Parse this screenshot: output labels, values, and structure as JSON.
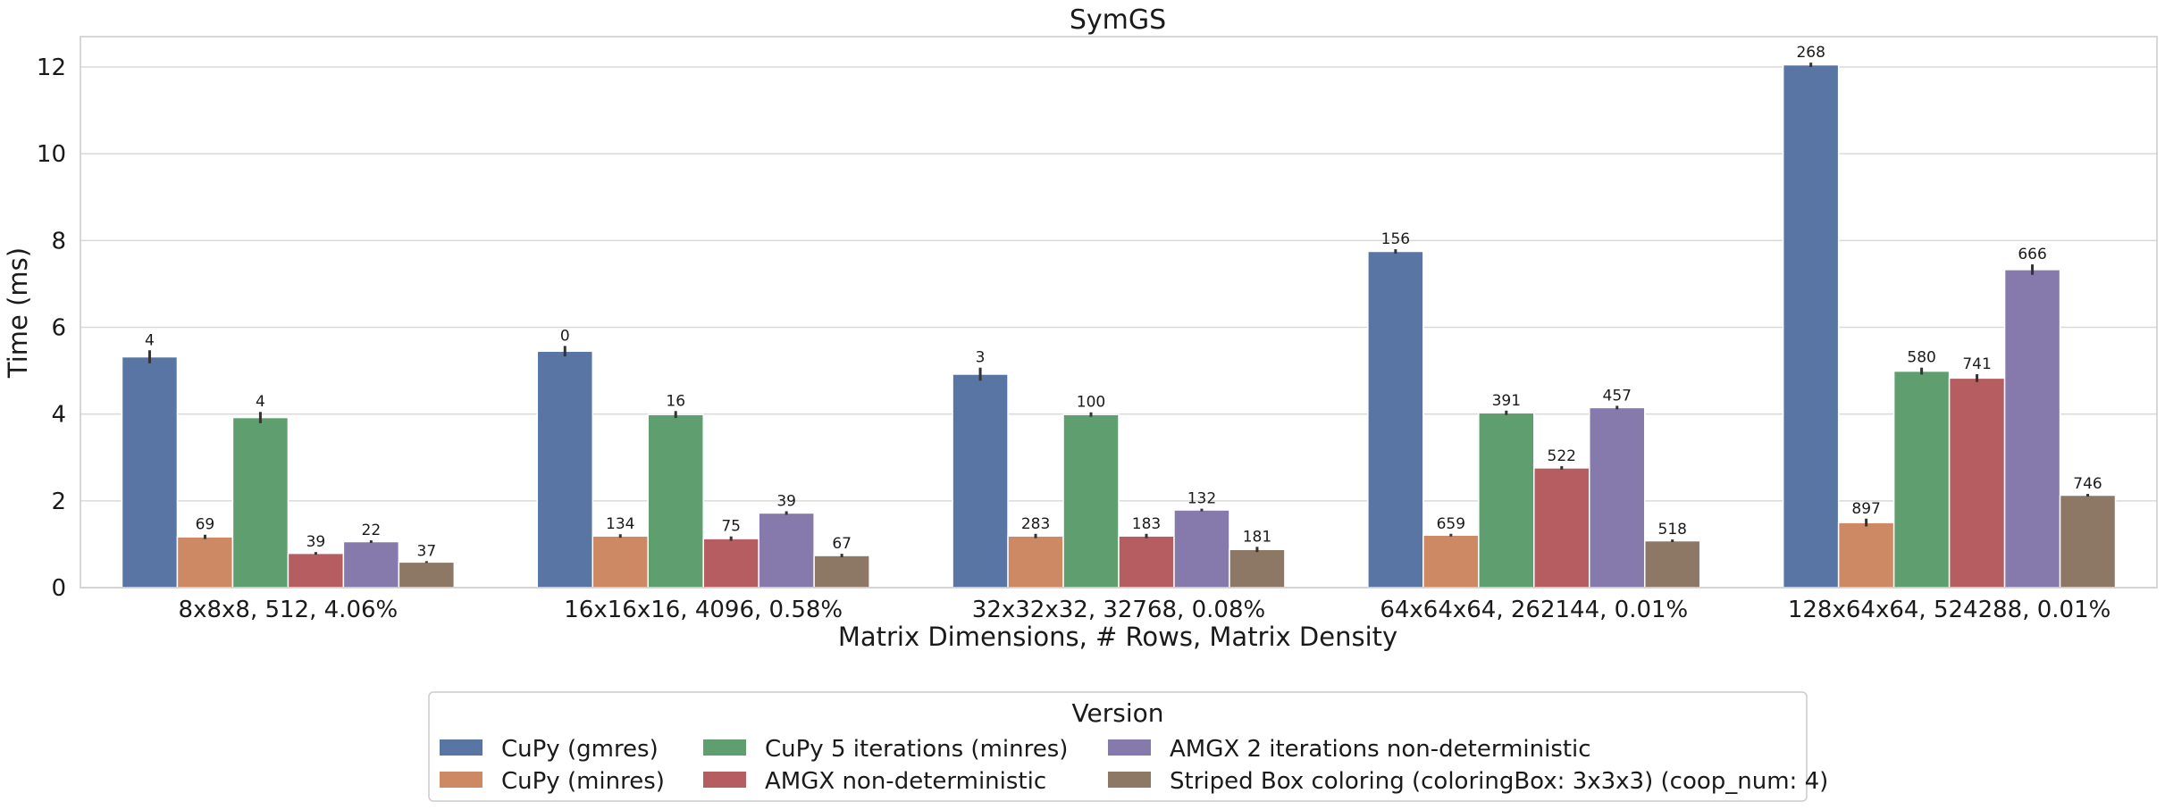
{
  "chart_data": {
    "type": "bar",
    "title": "SymGS",
    "xlabel": "Matrix Dimensions, # Rows, Matrix Density",
    "ylabel": "Time (ms)",
    "ylim": [
      0,
      12.7
    ],
    "yticks": [
      0,
      2,
      4,
      6,
      8,
      10,
      12
    ],
    "grid": true,
    "legend_position": "bottom-center",
    "legend_title": "Version",
    "categories": [
      "8x8x8, 512, 4.06%",
      "16x16x16, 4096, 0.58%",
      "32x32x32, 32768, 0.08%",
      "64x64x64, 262144, 0.01%",
      "128x64x64, 524288, 0.01%"
    ],
    "series": [
      {
        "name": "CuPy (gmres)",
        "color": "#5875a4",
        "values": [
          5.32,
          5.45,
          4.92,
          7.75,
          12.05
        ],
        "labels": [
          "4",
          "0",
          "3",
          "156",
          "268"
        ],
        "err": [
          0.15,
          0.12,
          0.15,
          0.05,
          0.05
        ]
      },
      {
        "name": "CuPy (minres)",
        "color": "#cc8963",
        "values": [
          1.17,
          1.19,
          1.19,
          1.21,
          1.5
        ],
        "labels": [
          "69",
          "134",
          "283",
          "659",
          "897"
        ],
        "err": [
          0.05,
          0.04,
          0.05,
          0.03,
          0.09
        ]
      },
      {
        "name": "CuPy 5 iterations (minres)",
        "color": "#5f9e6e",
        "values": [
          3.92,
          3.99,
          3.99,
          4.03,
          4.99
        ],
        "labels": [
          "4",
          "16",
          "100",
          "391",
          "580"
        ],
        "err": [
          0.13,
          0.08,
          0.05,
          0.05,
          0.08
        ]
      },
      {
        "name": "AMGX non-deterministic",
        "color": "#b55d60",
        "values": [
          0.79,
          1.13,
          1.19,
          2.76,
          4.83
        ],
        "labels": [
          "39",
          "75",
          "183",
          "522",
          "741"
        ],
        "err": [
          0.03,
          0.05,
          0.05,
          0.04,
          0.09
        ]
      },
      {
        "name": "AMGX 2 iterations non-deterministic",
        "color": "#857aab",
        "values": [
          1.06,
          1.72,
          1.79,
          4.15,
          7.33
        ],
        "labels": [
          "22",
          "39",
          "132",
          "457",
          "666"
        ],
        "err": [
          0.03,
          0.04,
          0.03,
          0.04,
          0.12
        ]
      },
      {
        "name": "Striped Box coloring (coloringBox: 3x3x3) (coop_num: 4)",
        "color": "#8d7866",
        "values": [
          0.59,
          0.74,
          0.88,
          1.08,
          2.13
        ],
        "labels": [
          "37",
          "67",
          "181",
          "518",
          "746"
        ],
        "err": [
          0.02,
          0.04,
          0.06,
          0.03,
          0.03
        ]
      }
    ]
  }
}
